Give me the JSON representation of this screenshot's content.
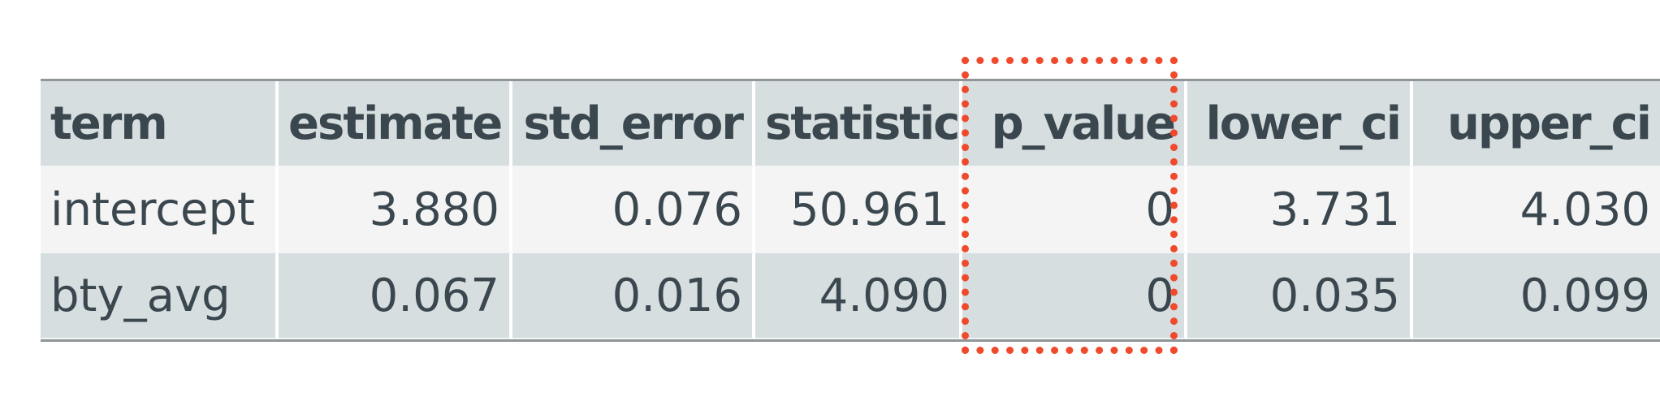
{
  "table": {
    "columns": [
      "term",
      "estimate",
      "std_error",
      "statistic",
      "p_value",
      "lower_ci",
      "upper_ci"
    ],
    "rows": [
      [
        "intercept",
        "3.880",
        "0.076",
        "50.961",
        "0",
        "3.731",
        "4.030"
      ],
      [
        "bty_avg",
        "0.067",
        "0.016",
        "4.090",
        "0",
        "0.035",
        "0.099"
      ]
    ]
  },
  "highlight": {
    "column": "p_value",
    "color": "#ef4a2b",
    "style": "dotted"
  },
  "colors": {
    "header_bg": "#d6dedf",
    "row_light_bg": "#f4f4f4",
    "row_dark_bg": "#d6dedf",
    "text": "#3b474f"
  }
}
